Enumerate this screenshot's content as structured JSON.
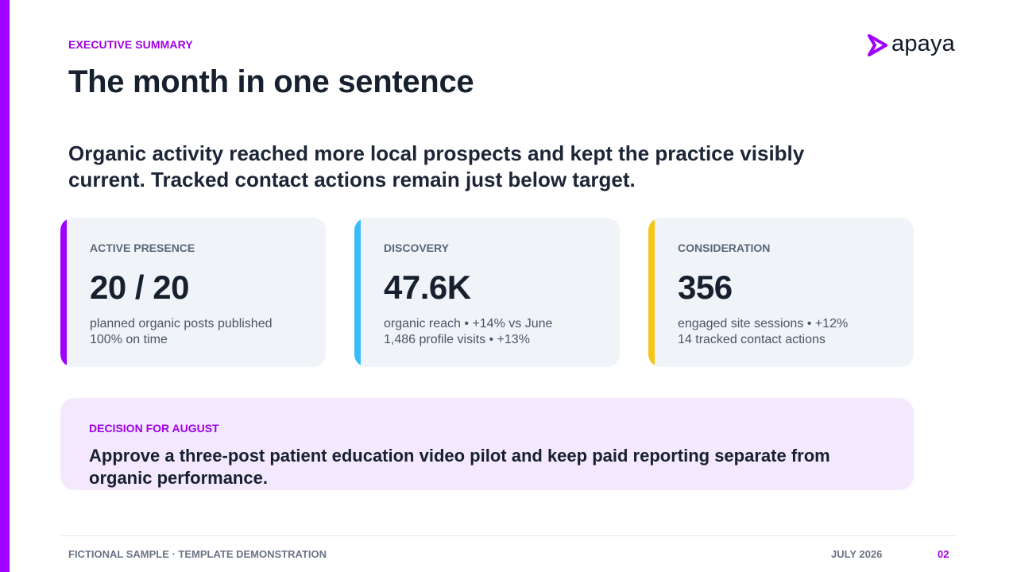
{
  "header": {
    "eyebrow": "EXECUTIVE SUMMARY",
    "title": "The month in one sentence",
    "logo_text": "apaya"
  },
  "lead": "Organic activity reached more local prospects and kept the practice visibly current. Tracked contact actions remain just below target.",
  "cards": [
    {
      "label": "ACTIVE PRESENCE",
      "value": "20 / 20",
      "line1": "planned organic posts published",
      "line2": "100% on time",
      "accent": "#a000ff"
    },
    {
      "label": "DISCOVERY",
      "value": "47.6K",
      "line1": "organic reach • +14% vs June",
      "line2": "1,486 profile visits • +13%",
      "accent": "#38bdf8"
    },
    {
      "label": "CONSIDERATION",
      "value": "356",
      "line1": "engaged site sessions • +12%",
      "line2": "14 tracked contact actions",
      "accent": "#f5c518"
    }
  ],
  "decision": {
    "label": "DECISION FOR AUGUST",
    "text": "Approve a three-post patient education video pilot and keep paid reporting separate from organic performance."
  },
  "footer": {
    "left": "FICTIONAL SAMPLE · TEMPLATE DEMONSTRATION",
    "date": "JULY 2026",
    "page": "02"
  },
  "colors": {
    "brand": "#a000ff",
    "brand_text": "#a000e6",
    "card_bg": "#f0f4f8",
    "decision_bg": "#f3e8fc"
  }
}
